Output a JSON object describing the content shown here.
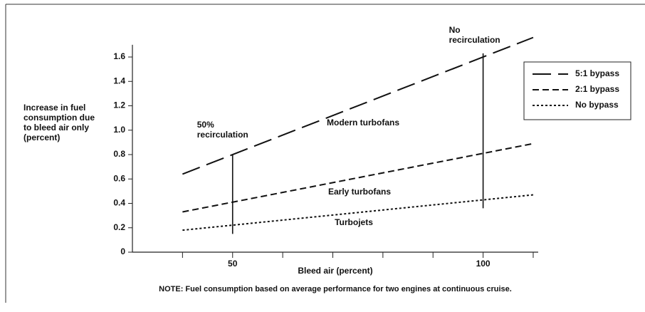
{
  "chart_data": {
    "type": "line",
    "ylabel": [
      "Increase in fuel",
      "consumption due",
      "to bleed air only",
      "(percent)"
    ],
    "xlabel": "Bleed air (percent)",
    "note": "NOTE: Fuel consumption based on average performance for two engines at continuous cruise.",
    "x": [
      40,
      110
    ],
    "series": [
      {
        "name": "5:1 bypass",
        "label": "Modern turbofans",
        "color": "#111111",
        "dash": "long",
        "values": [
          0.64,
          1.76
        ]
      },
      {
        "name": "2:1 bypass",
        "label": "Early turbofans",
        "color": "#111111",
        "dash": "medium",
        "values": [
          0.33,
          0.89
        ]
      },
      {
        "name": "No bypass",
        "label": "Turbojets",
        "color": "#111111",
        "dash": "dotted",
        "values": [
          0.18,
          0.47
        ]
      }
    ],
    "annotations": [
      {
        "text": [
          "50%",
          "recirculation"
        ],
        "x": 50,
        "y_range": [
          0.15,
          0.8
        ]
      },
      {
        "text": [
          "No",
          "recirculation"
        ],
        "x": 100,
        "y_range": [
          0.36,
          1.63
        ]
      }
    ],
    "xlim": [
      30,
      111
    ],
    "ylim": [
      0,
      1.7
    ],
    "xticks": [
      50,
      100
    ],
    "xminor_ticks": [
      40,
      60,
      70,
      80,
      90,
      110
    ],
    "yticks": [
      0,
      0.2,
      0.4,
      0.6,
      0.8,
      {
        "value": 1,
        "label": "1.0"
      },
      1.2,
      1.4,
      1.6
    ],
    "legend": "upper right"
  }
}
